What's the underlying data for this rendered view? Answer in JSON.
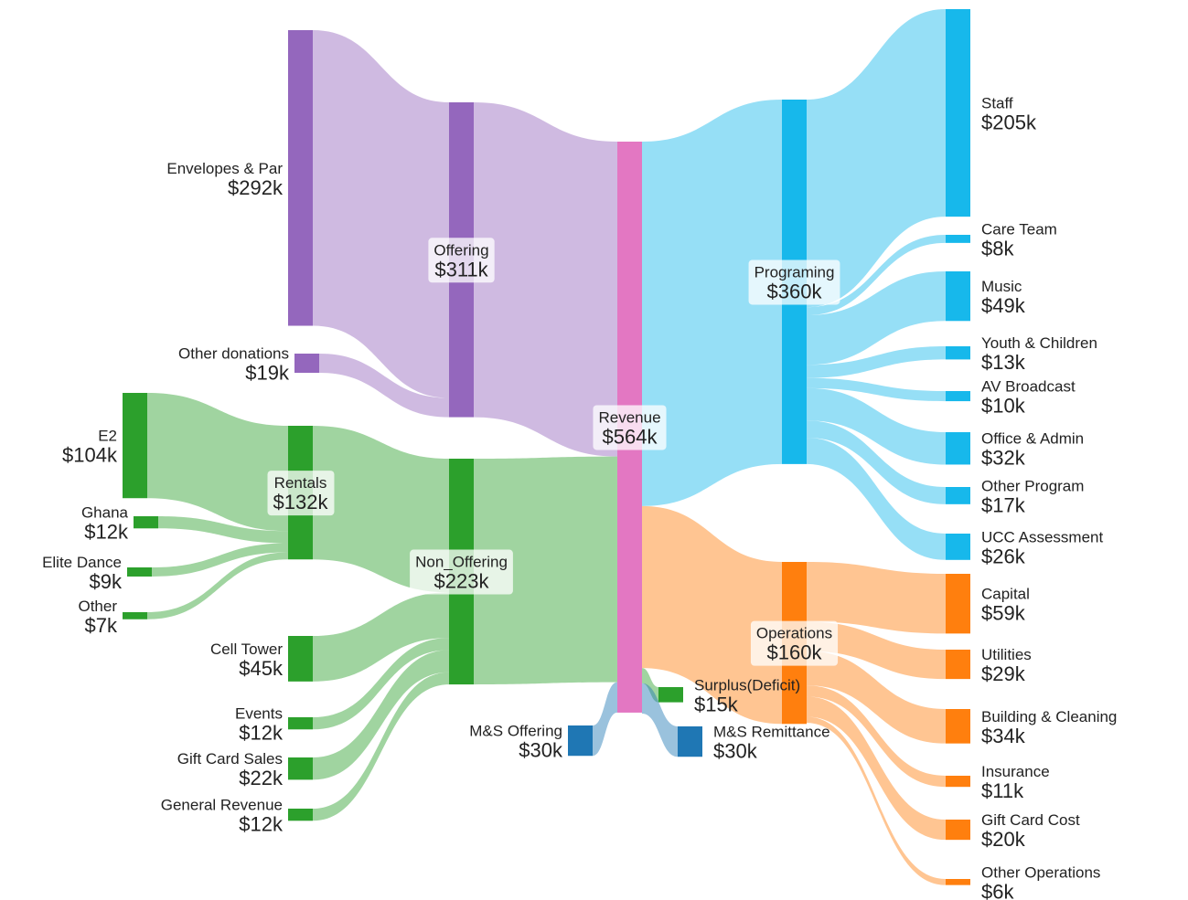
{
  "chart_data": {
    "type": "sankey",
    "nodes": [
      {
        "name": "Envelopes & Par",
        "value": 292,
        "value_label": "$292k",
        "color": "#9467bd"
      },
      {
        "name": "Other donations",
        "value": 19,
        "value_label": "$19k",
        "color": "#9467bd"
      },
      {
        "name": "Offering",
        "value": 311,
        "value_label": "$311k",
        "color": "#9467bd"
      },
      {
        "name": "E2",
        "value": 104,
        "value_label": "$104k",
        "color": "#2ca02c"
      },
      {
        "name": "Ghana",
        "value": 12,
        "value_label": "$12k",
        "color": "#2ca02c"
      },
      {
        "name": "Elite Dance",
        "value": 9,
        "value_label": "$9k",
        "color": "#2ca02c"
      },
      {
        "name": "Other",
        "value": 7,
        "value_label": "$7k",
        "color": "#2ca02c"
      },
      {
        "name": "Rentals",
        "value": 132,
        "value_label": "$132k",
        "color": "#2ca02c"
      },
      {
        "name": "Cell Tower",
        "value": 45,
        "value_label": "$45k",
        "color": "#2ca02c"
      },
      {
        "name": "Events",
        "value": 12,
        "value_label": "$12k",
        "color": "#2ca02c"
      },
      {
        "name": "Gift Card Sales",
        "value": 22,
        "value_label": "$22k",
        "color": "#2ca02c"
      },
      {
        "name": "General Revenue",
        "value": 12,
        "value_label": "$12k",
        "color": "#2ca02c"
      },
      {
        "name": "Non_Offering",
        "value": 223,
        "value_label": "$223k",
        "color": "#2ca02c"
      },
      {
        "name": "M&S Offering",
        "value": 30,
        "value_label": "$30k",
        "color": "#1f77b4"
      },
      {
        "name": "Revenue",
        "value": 564,
        "value_label": "$564k",
        "color": "#e377c2"
      },
      {
        "name": "Programing",
        "value": 360,
        "value_label": "$360k",
        "color": "#17b8eb"
      },
      {
        "name": "Operations",
        "value": 160,
        "value_label": "$160k",
        "color": "#ff7f0e"
      },
      {
        "name": "Surplus(Deficit)",
        "value": 15,
        "value_label": "$15k",
        "color": "#2ca02c"
      },
      {
        "name": "M&S Remittance",
        "value": 30,
        "value_label": "$30k",
        "color": "#1f77b4"
      },
      {
        "name": "Staff",
        "value": 205,
        "value_label": "$205k",
        "color": "#17b8eb"
      },
      {
        "name": "Care Team",
        "value": 8,
        "value_label": "$8k",
        "color": "#17b8eb"
      },
      {
        "name": "Music",
        "value": 49,
        "value_label": "$49k",
        "color": "#17b8eb"
      },
      {
        "name": "Youth & Children",
        "value": 13,
        "value_label": "$13k",
        "color": "#17b8eb"
      },
      {
        "name": "AV Broadcast",
        "value": 10,
        "value_label": "$10k",
        "color": "#17b8eb"
      },
      {
        "name": "Office & Admin",
        "value": 32,
        "value_label": "$32k",
        "color": "#17b8eb"
      },
      {
        "name": "Other Program",
        "value": 17,
        "value_label": "$17k",
        "color": "#17b8eb"
      },
      {
        "name": "UCC Assessment",
        "value": 26,
        "value_label": "$26k",
        "color": "#17b8eb"
      },
      {
        "name": "Capital",
        "value": 59,
        "value_label": "$59k",
        "color": "#ff7f0e"
      },
      {
        "name": "Utilities",
        "value": 29,
        "value_label": "$29k",
        "color": "#ff7f0e"
      },
      {
        "name": "Building & Cleaning",
        "value": 34,
        "value_label": "$34k",
        "color": "#ff7f0e"
      },
      {
        "name": "Insurance",
        "value": 11,
        "value_label": "$11k",
        "color": "#ff7f0e"
      },
      {
        "name": "Gift Card Cost",
        "value": 20,
        "value_label": "$20k",
        "color": "#ff7f0e"
      },
      {
        "name": "Other Operations",
        "value": 6,
        "value_label": "$6k",
        "color": "#ff7f0e"
      }
    ],
    "links": [
      {
        "source": 0,
        "target": 2
      },
      {
        "source": 1,
        "target": 2
      },
      {
        "source": 3,
        "target": 7
      },
      {
        "source": 4,
        "target": 7
      },
      {
        "source": 5,
        "target": 7
      },
      {
        "source": 6,
        "target": 7
      },
      {
        "source": 7,
        "target": 12
      },
      {
        "source": 8,
        "target": 12
      },
      {
        "source": 9,
        "target": 12
      },
      {
        "source": 10,
        "target": 12
      },
      {
        "source": 11,
        "target": 12
      },
      {
        "source": 2,
        "target": 14
      },
      {
        "source": 12,
        "target": 14
      },
      {
        "source": 13,
        "target": 14
      },
      {
        "source": 14,
        "target": 15
      },
      {
        "source": 14,
        "target": 16
      },
      {
        "source": 14,
        "target": 17
      },
      {
        "source": 14,
        "target": 18
      },
      {
        "source": 15,
        "target": 19
      },
      {
        "source": 15,
        "target": 20
      },
      {
        "source": 15,
        "target": 21
      },
      {
        "source": 15,
        "target": 22
      },
      {
        "source": 15,
        "target": 23
      },
      {
        "source": 15,
        "target": 24
      },
      {
        "source": 15,
        "target": 25
      },
      {
        "source": 15,
        "target": 26
      },
      {
        "source": 16,
        "target": 27
      },
      {
        "source": 16,
        "target": 28
      },
      {
        "source": 16,
        "target": 29
      },
      {
        "source": 16,
        "target": 30
      },
      {
        "source": 16,
        "target": 31
      },
      {
        "source": 16,
        "target": 32
      }
    ]
  }
}
